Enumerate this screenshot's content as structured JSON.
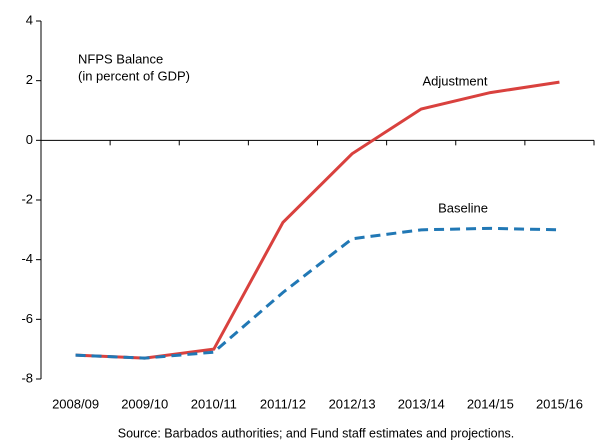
{
  "chart_data": {
    "type": "line",
    "annotations": [
      "NFPS Balance",
      "(in percent of GDP)"
    ],
    "source": "Source: Barbados authorities; and Fund staff estimates and projections.",
    "categories": [
      "2008/09",
      "2009/10",
      "2010/11",
      "2011/12",
      "2012/13",
      "2013/14",
      "2014/15",
      "2015/16"
    ],
    "series": [
      {
        "name": "Adjustment",
        "color": "#d9413e",
        "dash": "solid",
        "values": [
          -7.2,
          -7.3,
          -7.0,
          -2.75,
          -0.45,
          1.05,
          1.6,
          1.95
        ]
      },
      {
        "name": "Baseline",
        "color": "#2178b5",
        "dash": "dashed",
        "values": [
          -7.2,
          -7.3,
          -7.1,
          -5.1,
          -3.3,
          -3.0,
          -2.95,
          -3.0
        ]
      }
    ],
    "ylim": [
      -8,
      4
    ],
    "yticks": [
      -8,
      -6,
      -4,
      -2,
      0,
      2,
      4
    ],
    "grid": false
  }
}
